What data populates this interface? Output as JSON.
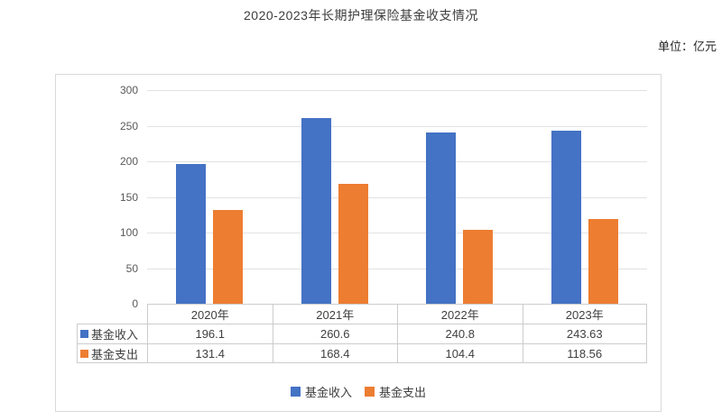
{
  "page": {
    "title": "2020-2023年长期护理保险基金收支情况",
    "unit_label": "单位：亿元"
  },
  "colors": {
    "income": "#4472C4",
    "expense": "#ED7D31",
    "grid": "#E2E2E2",
    "frame_border": "#D9D9D9",
    "table_border": "#CCCCCC",
    "axis_text": "#595959",
    "table_text": "#404040"
  },
  "chart_data": {
    "type": "bar",
    "title": "2020-2023年长期护理保险基金收支情况",
    "unit": "亿元",
    "categories": [
      "2020年",
      "2021年",
      "2022年",
      "2023年"
    ],
    "series": [
      {
        "key": "income",
        "name": "基金收入",
        "color": "#4472C4",
        "values": [
          196.1,
          260.6,
          240.8,
          243.63
        ]
      },
      {
        "key": "expense",
        "name": "基金支出",
        "color": "#ED7D31",
        "values": [
          131.4,
          168.4,
          104.4,
          118.56
        ]
      }
    ],
    "ylim": [
      0,
      300
    ],
    "yticks": [
      0,
      50,
      100,
      150,
      200,
      250,
      300
    ],
    "grid": true,
    "legend_position": "bottom",
    "data_table_shown": true
  }
}
